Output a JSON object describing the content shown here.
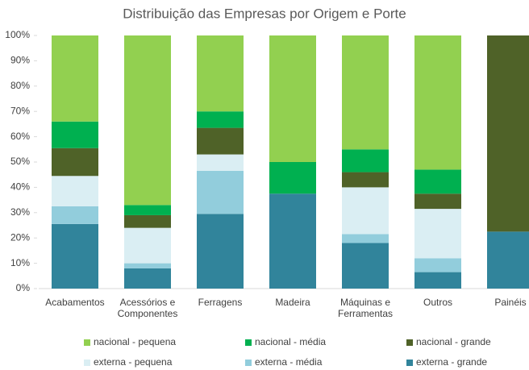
{
  "chart_data": {
    "type": "stacked_bar_100",
    "title": "Distribuição das Empresas por Origem e Porte",
    "categories": [
      "Acabamentos",
      "Acessórios e Componentes",
      "Ferragens",
      "Madeira",
      "Máquinas e Ferramentas",
      "Outros",
      "Painéis"
    ],
    "series": [
      {
        "name": "externa - grande",
        "color": "#31849b",
        "values": [
          25.5,
          8,
          29.5,
          37.5,
          18,
          6.5,
          22.5
        ]
      },
      {
        "name": "externa - média",
        "color": "#92cddc",
        "values": [
          7,
          2,
          17,
          0,
          3.5,
          5.5,
          0
        ]
      },
      {
        "name": "externa - pequena",
        "color": "#daeef3",
        "values": [
          12,
          14,
          6.5,
          0,
          18.5,
          19.5,
          0
        ]
      },
      {
        "name": "nacional - grande",
        "color": "#4f6228",
        "values": [
          11,
          5,
          10.5,
          0,
          6,
          6,
          77.5
        ]
      },
      {
        "name": "nacional - média",
        "color": "#00b050",
        "values": [
          10.5,
          4,
          6.5,
          12.5,
          9,
          9.5,
          0
        ]
      },
      {
        "name": "nacional - pequena",
        "color": "#92d050",
        "values": [
          34,
          67,
          30,
          50,
          45,
          53,
          0
        ]
      }
    ],
    "ylim": [
      0,
      100
    ],
    "yticks": [
      {
        "value": 0,
        "label": "0%"
      },
      {
        "value": 10,
        "label": "10%"
      },
      {
        "value": 20,
        "label": "20%"
      },
      {
        "value": 30,
        "label": "30%"
      },
      {
        "value": 40,
        "label": "40%"
      },
      {
        "value": 50,
        "label": "50%"
      },
      {
        "value": 60,
        "label": "60%"
      },
      {
        "value": 70,
        "label": "70%"
      },
      {
        "value": 80,
        "label": "80%"
      },
      {
        "value": 90,
        "label": "90%"
      },
      {
        "value": 100,
        "label": "100%"
      }
    ],
    "legend": "bottom",
    "legend_order": [
      5,
      4,
      3,
      2,
      1,
      0
    ]
  }
}
